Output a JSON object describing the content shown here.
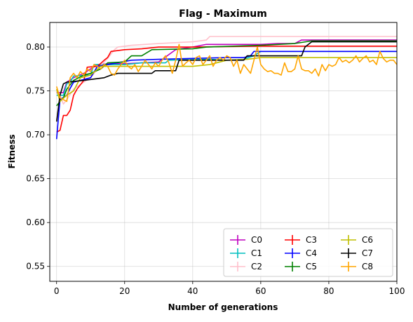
{
  "chart_data": {
    "type": "line",
    "title": "Flag - Maximum",
    "xlabel": "Number of generations",
    "ylabel": "Fitness",
    "xlim": [
      -2,
      100
    ],
    "ylim": [
      0.533,
      0.828
    ],
    "xticks": [
      0,
      20,
      40,
      60,
      80,
      100
    ],
    "yticks": [
      0.55,
      0.6,
      0.65,
      0.7,
      0.75,
      0.8
    ],
    "xtick_labels": [
      "0",
      "20",
      "40",
      "60",
      "80",
      "100"
    ],
    "ytick_labels": [
      "0.55",
      "0.60",
      "0.65",
      "0.70",
      "0.75",
      "0.80"
    ],
    "grid": true,
    "legend_position": "lower-right",
    "legend_columns": 3,
    "series": [
      {
        "name": "C0",
        "color": "#bf00bf",
        "points": [
          [
            0,
            0.748
          ],
          [
            1,
            0.748
          ],
          [
            2,
            0.748
          ],
          [
            3,
            0.76
          ],
          [
            5,
            0.765
          ],
          [
            8,
            0.77
          ],
          [
            10,
            0.775
          ],
          [
            12,
            0.78
          ],
          [
            16,
            0.781
          ],
          [
            20,
            0.781
          ],
          [
            30,
            0.783
          ],
          [
            35,
            0.797
          ],
          [
            40,
            0.8
          ],
          [
            44,
            0.803
          ],
          [
            55,
            0.803
          ],
          [
            60,
            0.803
          ],
          [
            65,
            0.804
          ],
          [
            70,
            0.804
          ],
          [
            72,
            0.808
          ],
          [
            80,
            0.808
          ],
          [
            100,
            0.808
          ]
        ]
      },
      {
        "name": "C1",
        "color": "#00bfbf",
        "points": [
          [
            0,
            0.745
          ],
          [
            2,
            0.745
          ],
          [
            3,
            0.758
          ],
          [
            4,
            0.76
          ],
          [
            5,
            0.767
          ],
          [
            10,
            0.768
          ],
          [
            11,
            0.78
          ],
          [
            20,
            0.78
          ],
          [
            25,
            0.782
          ],
          [
            32,
            0.782
          ],
          [
            33,
            0.785
          ],
          [
            45,
            0.786
          ],
          [
            50,
            0.785
          ],
          [
            55,
            0.786
          ],
          [
            58,
            0.79
          ],
          [
            60,
            0.795
          ],
          [
            80,
            0.795
          ],
          [
            100,
            0.795
          ]
        ]
      },
      {
        "name": "C2",
        "color": "#ffc0cb",
        "points": [
          [
            0,
            0.715
          ],
          [
            1,
            0.745
          ],
          [
            2,
            0.735
          ],
          [
            3,
            0.74
          ],
          [
            5,
            0.752
          ],
          [
            8,
            0.76
          ],
          [
            10,
            0.765
          ],
          [
            12,
            0.775
          ],
          [
            15,
            0.787
          ],
          [
            17,
            0.797
          ],
          [
            18,
            0.8
          ],
          [
            22,
            0.802
          ],
          [
            30,
            0.804
          ],
          [
            40,
            0.806
          ],
          [
            44,
            0.808
          ],
          [
            45,
            0.812
          ],
          [
            60,
            0.812
          ],
          [
            80,
            0.812
          ],
          [
            100,
            0.812
          ]
        ]
      },
      {
        "name": "C3",
        "color": "#ff0000",
        "points": [
          [
            0,
            0.703
          ],
          [
            1,
            0.705
          ],
          [
            2,
            0.722
          ],
          [
            3,
            0.722
          ],
          [
            4,
            0.728
          ],
          [
            5,
            0.745
          ],
          [
            6,
            0.752
          ],
          [
            8,
            0.762
          ],
          [
            9,
            0.777
          ],
          [
            12,
            0.778
          ],
          [
            14,
            0.785
          ],
          [
            15,
            0.788
          ],
          [
            16,
            0.795
          ],
          [
            20,
            0.797
          ],
          [
            25,
            0.798
          ],
          [
            30,
            0.8
          ],
          [
            40,
            0.8
          ],
          [
            60,
            0.801
          ],
          [
            80,
            0.801
          ],
          [
            100,
            0.801
          ]
        ]
      },
      {
        "name": "C4",
        "color": "#0000ff",
        "points": [
          [
            0,
            0.695
          ],
          [
            1,
            0.74
          ],
          [
            3,
            0.745
          ],
          [
            4,
            0.753
          ],
          [
            5,
            0.76
          ],
          [
            10,
            0.765
          ],
          [
            12,
            0.778
          ],
          [
            15,
            0.78
          ],
          [
            22,
            0.785
          ],
          [
            30,
            0.786
          ],
          [
            40,
            0.787
          ],
          [
            50,
            0.788
          ],
          [
            55,
            0.788
          ],
          [
            57,
            0.79
          ],
          [
            58,
            0.795
          ],
          [
            80,
            0.795
          ],
          [
            100,
            0.795
          ]
        ]
      },
      {
        "name": "C5",
        "color": "#008000",
        "points": [
          [
            0,
            0.733
          ],
          [
            1,
            0.738
          ],
          [
            2,
            0.742
          ],
          [
            3,
            0.752
          ],
          [
            5,
            0.762
          ],
          [
            8,
            0.768
          ],
          [
            10,
            0.77
          ],
          [
            13,
            0.775
          ],
          [
            15,
            0.782
          ],
          [
            20,
            0.783
          ],
          [
            22,
            0.79
          ],
          [
            25,
            0.79
          ],
          [
            28,
            0.797
          ],
          [
            40,
            0.798
          ],
          [
            44,
            0.8
          ],
          [
            60,
            0.802
          ],
          [
            70,
            0.804
          ],
          [
            75,
            0.807
          ],
          [
            100,
            0.807
          ]
        ]
      },
      {
        "name": "C6",
        "color": "#bfbf00",
        "points": [
          [
            0,
            0.752
          ],
          [
            1,
            0.738
          ],
          [
            3,
            0.745
          ],
          [
            5,
            0.75
          ],
          [
            7,
            0.765
          ],
          [
            10,
            0.768
          ],
          [
            13,
            0.778
          ],
          [
            20,
            0.778
          ],
          [
            30,
            0.778
          ],
          [
            36,
            0.778
          ],
          [
            40,
            0.778
          ],
          [
            45,
            0.78
          ],
          [
            50,
            0.785
          ],
          [
            56,
            0.786
          ],
          [
            60,
            0.788
          ],
          [
            80,
            0.788
          ],
          [
            100,
            0.788
          ]
        ]
      },
      {
        "name": "C7",
        "color": "#000000",
        "points": [
          [
            0,
            0.715
          ],
          [
            1,
            0.745
          ],
          [
            2,
            0.758
          ],
          [
            3,
            0.76
          ],
          [
            8,
            0.762
          ],
          [
            10,
            0.763
          ],
          [
            14,
            0.765
          ],
          [
            16,
            0.768
          ],
          [
            18,
            0.77
          ],
          [
            28,
            0.77
          ],
          [
            29,
            0.773
          ],
          [
            35,
            0.773
          ],
          [
            36,
            0.785
          ],
          [
            50,
            0.785
          ],
          [
            55,
            0.785
          ],
          [
            56,
            0.79
          ],
          [
            72,
            0.79
          ],
          [
            73,
            0.8
          ],
          [
            75,
            0.806
          ],
          [
            100,
            0.806
          ]
        ]
      },
      {
        "name": "C8",
        "color": "#ffa500",
        "points": [
          [
            0,
            0.755
          ],
          [
            1,
            0.742
          ],
          [
            2,
            0.74
          ],
          [
            3,
            0.738
          ],
          [
            4,
            0.765
          ],
          [
            5,
            0.77
          ],
          [
            6,
            0.765
          ],
          [
            7,
            0.772
          ],
          [
            8,
            0.768
          ],
          [
            9,
            0.775
          ],
          [
            10,
            0.772
          ],
          [
            11,
            0.78
          ],
          [
            12,
            0.778
          ],
          [
            13,
            0.775
          ],
          [
            14,
            0.78
          ],
          [
            15,
            0.778
          ],
          [
            16,
            0.77
          ],
          [
            17,
            0.768
          ],
          [
            18,
            0.775
          ],
          [
            19,
            0.78
          ],
          [
            20,
            0.785
          ],
          [
            21,
            0.778
          ],
          [
            22,
            0.775
          ],
          [
            23,
            0.78
          ],
          [
            24,
            0.772
          ],
          [
            25,
            0.778
          ],
          [
            26,
            0.785
          ],
          [
            27,
            0.78
          ],
          [
            28,
            0.775
          ],
          [
            29,
            0.782
          ],
          [
            30,
            0.778
          ],
          [
            31,
            0.785
          ],
          [
            32,
            0.79
          ],
          [
            33,
            0.782
          ],
          [
            34,
            0.77
          ],
          [
            35,
            0.785
          ],
          [
            36,
            0.803
          ],
          [
            37,
            0.778
          ],
          [
            38,
            0.782
          ],
          [
            39,
            0.785
          ],
          [
            40,
            0.78
          ],
          [
            41,
            0.788
          ],
          [
            42,
            0.79
          ],
          [
            43,
            0.78
          ],
          [
            44,
            0.785
          ],
          [
            45,
            0.79
          ],
          [
            46,
            0.778
          ],
          [
            47,
            0.785
          ],
          [
            48,
            0.788
          ],
          [
            49,
            0.785
          ],
          [
            50,
            0.79
          ],
          [
            51,
            0.788
          ],
          [
            52,
            0.778
          ],
          [
            53,
            0.785
          ],
          [
            54,
            0.77
          ],
          [
            55,
            0.78
          ],
          [
            56,
            0.775
          ],
          [
            57,
            0.77
          ],
          [
            58,
            0.785
          ],
          [
            59,
            0.8
          ],
          [
            60,
            0.78
          ],
          [
            61,
            0.775
          ],
          [
            62,
            0.772
          ],
          [
            63,
            0.773
          ],
          [
            64,
            0.77
          ],
          [
            65,
            0.77
          ],
          [
            66,
            0.768
          ],
          [
            67,
            0.782
          ],
          [
            68,
            0.772
          ],
          [
            69,
            0.772
          ],
          [
            70,
            0.775
          ],
          [
            71,
            0.79
          ],
          [
            72,
            0.775
          ],
          [
            73,
            0.773
          ],
          [
            74,
            0.773
          ],
          [
            75,
            0.77
          ],
          [
            76,
            0.775
          ],
          [
            77,
            0.767
          ],
          [
            78,
            0.78
          ],
          [
            79,
            0.773
          ],
          [
            80,
            0.78
          ],
          [
            81,
            0.778
          ],
          [
            82,
            0.78
          ],
          [
            83,
            0.788
          ],
          [
            84,
            0.783
          ],
          [
            85,
            0.785
          ],
          [
            86,
            0.782
          ],
          [
            87,
            0.785
          ],
          [
            88,
            0.79
          ],
          [
            89,
            0.783
          ],
          [
            90,
            0.787
          ],
          [
            91,
            0.79
          ],
          [
            92,
            0.783
          ],
          [
            93,
            0.785
          ],
          [
            94,
            0.78
          ],
          [
            95,
            0.795
          ],
          [
            96,
            0.787
          ],
          [
            97,
            0.783
          ],
          [
            98,
            0.785
          ],
          [
            99,
            0.785
          ],
          [
            100,
            0.78
          ]
        ]
      }
    ]
  }
}
